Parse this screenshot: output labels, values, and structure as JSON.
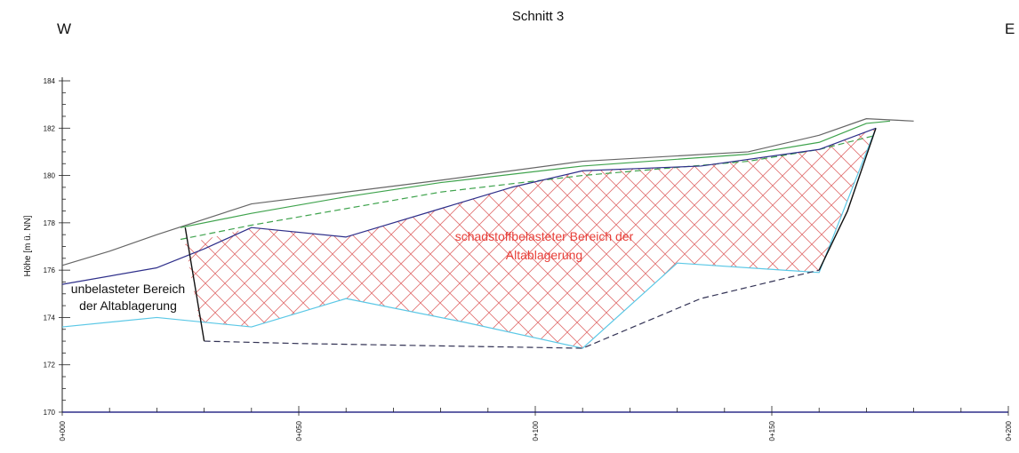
{
  "title": "Schnitt 3",
  "direction_left": "W",
  "direction_right": "E",
  "ylabel": "Höhe [m ü. NN]",
  "y_ticks": [
    "184",
    "182",
    "180",
    "178",
    "176",
    "174",
    "172",
    "170"
  ],
  "x_ticks": [
    "0+000",
    "0+050",
    "0+100",
    "0+150",
    "0+200"
  ],
  "annotations": {
    "unloaded_line1": "unbelasteter Bereich",
    "unloaded_line2": "der Altablagerung",
    "contaminated_line1": "schadstoffbelasteter Bereich der",
    "contaminated_line2": "Altablagerung"
  },
  "colors": {
    "terrain_gray": "#666666",
    "terrain_green": "#3fa34d",
    "dashed_green": "#3fa34d",
    "dark_blue": "#2e2f8a",
    "cyan": "#5bc8e6",
    "base_dashed": "#333355",
    "hatch": "#e07070",
    "text_red": "#e8403a"
  },
  "chart_data": {
    "type": "line",
    "xlabel": "",
    "ylabel": "Höhe [m ü. NN]",
    "xlim": [
      0,
      200
    ],
    "ylim": [
      170,
      184
    ],
    "series": [
      {
        "key": "gray_terrain",
        "style": "solid",
        "color": "#666666",
        "points": [
          [
            0,
            176.2
          ],
          [
            10,
            176.8
          ],
          [
            20,
            177.5
          ],
          [
            40,
            178.8
          ],
          [
            60,
            179.3
          ],
          [
            80,
            179.8
          ],
          [
            110,
            180.6
          ],
          [
            145,
            181.0
          ],
          [
            160,
            181.7
          ],
          [
            170,
            182.4
          ],
          [
            180,
            182.3
          ]
        ]
      },
      {
        "key": "green_terrain",
        "style": "solid",
        "color": "#3fa34d",
        "points": [
          [
            25,
            177.8
          ],
          [
            40,
            178.4
          ],
          [
            60,
            179.1
          ],
          [
            80,
            179.7
          ],
          [
            110,
            180.4
          ],
          [
            145,
            180.9
          ],
          [
            160,
            181.4
          ],
          [
            170,
            182.2
          ],
          [
            175,
            182.3
          ]
        ]
      },
      {
        "key": "green_dashed",
        "style": "dashed",
        "color": "#3fa34d",
        "points": [
          [
            25,
            177.3
          ],
          [
            40,
            177.9
          ],
          [
            60,
            178.6
          ],
          [
            80,
            179.3
          ],
          [
            110,
            180.0
          ],
          [
            145,
            180.6
          ],
          [
            160,
            181.1
          ],
          [
            172,
            181.7
          ]
        ]
      },
      {
        "key": "blue_upper",
        "style": "solid",
        "color": "#2e2f8a",
        "points": [
          [
            0,
            175.4
          ],
          [
            20,
            176.1
          ],
          [
            30,
            176.9
          ],
          [
            40,
            177.8
          ],
          [
            60,
            177.4
          ],
          [
            80,
            178.6
          ],
          [
            95,
            179.5
          ],
          [
            110,
            180.2
          ],
          [
            135,
            180.4
          ],
          [
            160,
            181.1
          ],
          [
            172,
            182.0
          ]
        ]
      },
      {
        "key": "cyan_lower",
        "style": "solid",
        "color": "#5bc8e6",
        "points": [
          [
            0,
            173.6
          ],
          [
            20,
            174.0
          ],
          [
            40,
            173.6
          ],
          [
            60,
            174.8
          ],
          [
            85,
            173.8
          ],
          [
            110,
            172.7
          ],
          [
            130,
            176.3
          ],
          [
            160,
            175.9
          ],
          [
            172,
            182.0
          ]
        ]
      },
      {
        "key": "base_dashed",
        "style": "dashed",
        "color": "#333355",
        "points": [
          [
            30,
            173.0
          ],
          [
            50,
            172.9
          ],
          [
            110,
            172.7
          ],
          [
            135,
            174.8
          ],
          [
            160,
            176.0
          ]
        ]
      },
      {
        "key": "boundary_left",
        "style": "solid",
        "color": "#111111",
        "points": [
          [
            26,
            177.8
          ],
          [
            30,
            173.0
          ]
        ]
      },
      {
        "key": "boundary_right",
        "style": "solid",
        "color": "#111111",
        "points": [
          [
            160,
            176.0
          ],
          [
            166,
            178.5
          ],
          [
            172,
            182.0
          ]
        ]
      }
    ],
    "regions": [
      {
        "key": "contaminated",
        "fill": "hatch",
        "color": "#e07070",
        "polygon": [
          [
            26,
            177.1
          ],
          [
            40,
            177.8
          ],
          [
            60,
            177.4
          ],
          [
            80,
            178.6
          ],
          [
            95,
            179.5
          ],
          [
            110,
            180.2
          ],
          [
            135,
            180.4
          ],
          [
            160,
            181.1
          ],
          [
            172,
            182.0
          ],
          [
            160,
            175.9
          ],
          [
            130,
            176.3
          ],
          [
            110,
            172.7
          ],
          [
            85,
            173.8
          ],
          [
            60,
            174.8
          ],
          [
            40,
            173.6
          ],
          [
            29,
            173.8
          ]
        ]
      }
    ]
  }
}
